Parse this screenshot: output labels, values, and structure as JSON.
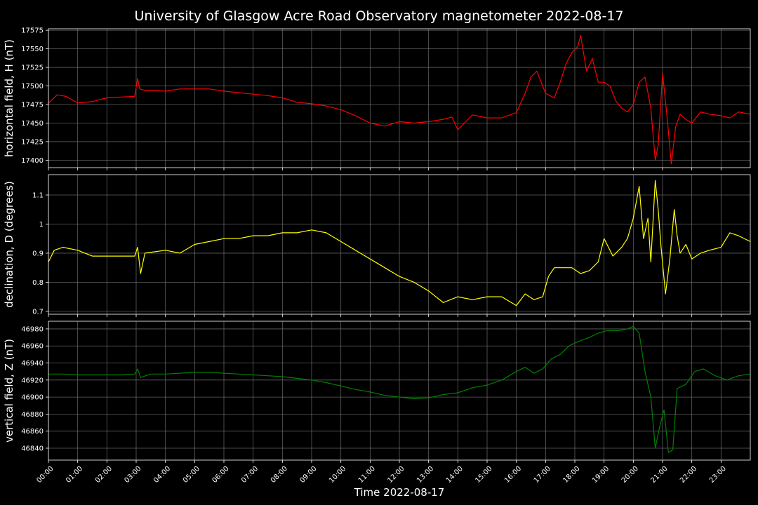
{
  "title": "University of Glasgow Acre Road Observatory magnetometer 2022-08-17",
  "colors": {
    "background": "#000000",
    "foreground": "#ffffff",
    "grid": "#808080"
  },
  "chart_data": {
    "type": "line",
    "xlabel": "Time 2022-08-17",
    "x_unit": "hours",
    "xlim": [
      0,
      24
    ],
    "x_ticks": [
      "00:00",
      "01:00",
      "02:00",
      "03:00",
      "04:00",
      "05:00",
      "06:00",
      "07:00",
      "08:00",
      "09:00",
      "10:00",
      "11:00",
      "12:00",
      "13:00",
      "14:00",
      "15:00",
      "16:00",
      "17:00",
      "18:00",
      "19:00",
      "20:00",
      "21:00",
      "22:00",
      "23:00"
    ],
    "grid": true,
    "panels": [
      {
        "ylabel": "horizontal field, H (nT)",
        "color": "#ff0000",
        "ylim": [
          17390,
          17577
        ],
        "y_ticks": [
          17400,
          17425,
          17450,
          17475,
          17500,
          17525,
          17550,
          17575
        ],
        "x": [
          0,
          0.3,
          0.6,
          1.0,
          1.5,
          2.0,
          2.5,
          2.95,
          3.05,
          3.12,
          3.3,
          4.0,
          4.5,
          5.0,
          5.5,
          6.0,
          6.5,
          7.0,
          7.5,
          8.0,
          8.5,
          9.0,
          9.5,
          10.0,
          10.5,
          11.0,
          11.5,
          12.0,
          12.5,
          13.0,
          13.5,
          13.8,
          14.0,
          14.5,
          15.0,
          15.5,
          16.0,
          16.3,
          16.5,
          16.7,
          17.0,
          17.3,
          17.5,
          17.7,
          17.9,
          18.1,
          18.2,
          18.4,
          18.6,
          18.8,
          19.0,
          19.2,
          19.4,
          19.6,
          19.8,
          20.0,
          20.2,
          20.4,
          20.6,
          20.75,
          20.85,
          21.0,
          21.15,
          21.3,
          21.45,
          21.6,
          21.8,
          22.0,
          22.3,
          22.6,
          23.0,
          23.3,
          23.6,
          24.0
        ],
        "values": [
          17477,
          17488,
          17486,
          17477,
          17479,
          17484,
          17485,
          17486,
          17510,
          17496,
          17494,
          17493,
          17496,
          17496,
          17496,
          17493,
          17491,
          17489,
          17487,
          17484,
          17478,
          17476,
          17473,
          17468,
          17460,
          17450,
          17446,
          17452,
          17450,
          17452,
          17455,
          17458,
          17441,
          17461,
          17457,
          17457,
          17464,
          17490,
          17512,
          17520,
          17490,
          17484,
          17505,
          17530,
          17545,
          17553,
          17568,
          17520,
          17537,
          17505,
          17505,
          17500,
          17480,
          17470,
          17465,
          17475,
          17505,
          17512,
          17470,
          17400,
          17420,
          17517,
          17460,
          17395,
          17445,
          17462,
          17455,
          17450,
          17465,
          17462,
          17460,
          17457,
          17465,
          17462
        ]
      },
      {
        "ylabel": "declination, D (degrees)",
        "color": "#ffff00",
        "ylim": [
          0.69,
          1.17
        ],
        "y_ticks": [
          0.7,
          0.8,
          0.9,
          1.0,
          1.1
        ],
        "x": [
          0,
          0.2,
          0.5,
          1.0,
          1.5,
          2.0,
          2.5,
          2.95,
          3.05,
          3.15,
          3.3,
          4.0,
          4.5,
          5.0,
          5.5,
          6.0,
          6.5,
          7.0,
          7.5,
          8.0,
          8.5,
          9.0,
          9.5,
          10.0,
          10.5,
          11.0,
          11.5,
          12.0,
          12.5,
          13.0,
          13.5,
          14.0,
          14.5,
          15.0,
          15.5,
          16.0,
          16.3,
          16.6,
          16.9,
          17.1,
          17.3,
          17.6,
          17.9,
          18.2,
          18.5,
          18.8,
          19.0,
          19.3,
          19.6,
          19.8,
          20.0,
          20.2,
          20.35,
          20.5,
          20.6,
          20.75,
          20.85,
          20.95,
          21.1,
          21.25,
          21.4,
          21.5,
          21.6,
          21.8,
          22.0,
          22.3,
          22.6,
          23.0,
          23.3,
          23.6,
          24.0
        ],
        "values": [
          0.87,
          0.91,
          0.92,
          0.91,
          0.89,
          0.89,
          0.89,
          0.89,
          0.92,
          0.83,
          0.9,
          0.91,
          0.9,
          0.93,
          0.94,
          0.95,
          0.95,
          0.96,
          0.96,
          0.97,
          0.97,
          0.98,
          0.97,
          0.94,
          0.91,
          0.88,
          0.85,
          0.82,
          0.8,
          0.77,
          0.73,
          0.75,
          0.74,
          0.75,
          0.75,
          0.72,
          0.76,
          0.74,
          0.75,
          0.82,
          0.85,
          0.85,
          0.85,
          0.83,
          0.84,
          0.87,
          0.95,
          0.89,
          0.92,
          0.95,
          1.02,
          1.13,
          0.95,
          1.02,
          0.87,
          1.15,
          1.05,
          0.92,
          0.76,
          0.88,
          1.05,
          0.96,
          0.9,
          0.93,
          0.88,
          0.9,
          0.91,
          0.92,
          0.97,
          0.96,
          0.94
        ]
      },
      {
        "ylabel": "vertical field, Z (nT)",
        "color": "#008000",
        "ylim": [
          46826,
          46989
        ],
        "y_ticks": [
          46840,
          46860,
          46880,
          46900,
          46920,
          46940,
          46960,
          46980
        ],
        "x": [
          0,
          0.5,
          1.0,
          1.5,
          2.0,
          2.5,
          2.95,
          3.05,
          3.15,
          3.5,
          4.0,
          4.5,
          5.0,
          5.5,
          6.0,
          6.5,
          7.0,
          7.5,
          8.0,
          8.5,
          9.0,
          9.5,
          10.0,
          10.5,
          11.0,
          11.5,
          12.0,
          12.5,
          13.0,
          13.5,
          14.0,
          14.5,
          15.0,
          15.5,
          16.0,
          16.3,
          16.6,
          16.9,
          17.2,
          17.5,
          17.8,
          18.1,
          18.5,
          18.8,
          19.1,
          19.5,
          19.8,
          20.0,
          20.2,
          20.4,
          20.6,
          20.75,
          20.9,
          21.05,
          21.2,
          21.35,
          21.5,
          21.8,
          22.1,
          22.4,
          22.8,
          23.2,
          23.6,
          24.0
        ],
        "values": [
          46927,
          46927,
          46926,
          46926,
          46926,
          46926,
          46927,
          46933,
          46923,
          46927,
          46927,
          46928,
          46929,
          46929,
          46928,
          46927,
          46926,
          46925,
          46924,
          46922,
          46920,
          46917,
          46913,
          46909,
          46906,
          46902,
          46900,
          46898,
          46899,
          46903,
          46905,
          46911,
          46914,
          46920,
          46930,
          46935,
          46928,
          46933,
          46945,
          46950,
          46960,
          46965,
          46970,
          46975,
          46978,
          46978,
          46980,
          46983,
          46975,
          46930,
          46900,
          46840,
          46865,
          46885,
          46835,
          46838,
          46910,
          46915,
          46930,
          46933,
          46925,
          46920,
          46925,
          46927
        ]
      }
    ]
  }
}
